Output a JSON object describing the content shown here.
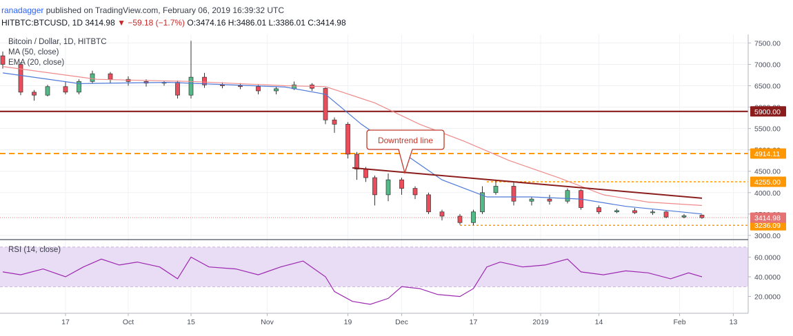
{
  "header": {
    "author": "ranadagger",
    "published_text": "published on TradingView.com, February 06, 2019 16:39:32 UTC",
    "symbol": "HITBTC:BTCUSD, 1D",
    "last": "3414.98",
    "change": "▼ −59.18 (−1.7%)",
    "open": "O:3474.16",
    "high": "H:3486.01",
    "low": "L:3386.01",
    "close": "C:3414.98"
  },
  "legend": {
    "title": "Bitcoin / Dollar, 1D, HITBTC",
    "ma": "MA (50, close)",
    "ema": "EMA (20, close)",
    "rsi": "RSI (14, close)"
  },
  "annotation": {
    "text": "Downtrend line"
  },
  "colors": {
    "up": "#53b987",
    "down": "#eb4d5c",
    "ma50": "#ef8a8a",
    "ema20": "#4e79d8",
    "level": "#8b1d1d",
    "dashed": "#ff9800",
    "rsi_line": "#9c27b0",
    "rsi_band": "#e9dcf5",
    "current_tag": "#e57373"
  },
  "chart_data": [
    {
      "type": "candlestick",
      "title": "Bitcoin / Dollar, 1D, HITBTC",
      "y_ticks": [
        "7500.00",
        "7000.00",
        "6500.00",
        "6000.00",
        "5500.00",
        "5000.00",
        "4500.00",
        "4000.00",
        "3500.00",
        "3000.00"
      ],
      "x_ticks": [
        "17",
        "Oct",
        "15",
        "Nov",
        "19",
        "Dec",
        "17",
        "2019",
        "14",
        "Feb",
        "13"
      ],
      "ylim": [
        2950,
        7700
      ],
      "x_range": [
        "2018-09-03",
        "2019-02-14"
      ],
      "levels": [
        {
          "label": "5900.00",
          "value": 5900,
          "style": "solid"
        },
        {
          "label": "4914.11",
          "value": 4914.11,
          "style": "dashed"
        },
        {
          "label": "4255.00",
          "value": 4255,
          "style": "dashed"
        },
        {
          "label": "3236.09",
          "value": 3236.09,
          "style": "dashed"
        }
      ],
      "current_price": {
        "label": "3414.98",
        "value": 3414.98
      },
      "downtrend_line": {
        "from": [
          "2018-11-20",
          4580
        ],
        "to": [
          "2019-02-06",
          3870
        ]
      },
      "ohlc": [
        [
          "2018-09-03",
          7200,
          7300,
          6900,
          7000
        ],
        [
          "2018-09-07",
          7000,
          7050,
          6280,
          6350
        ],
        [
          "2018-09-10",
          6350,
          6400,
          6150,
          6280
        ],
        [
          "2018-09-13",
          6280,
          6520,
          6250,
          6480
        ],
        [
          "2018-09-17",
          6480,
          6600,
          6300,
          6350
        ],
        [
          "2018-09-20",
          6350,
          6650,
          6300,
          6600
        ],
        [
          "2018-09-23",
          6600,
          6850,
          6550,
          6780
        ],
        [
          "2018-09-27",
          6780,
          6820,
          6550,
          6650
        ],
        [
          "2018-10-01",
          6650,
          6720,
          6500,
          6600
        ],
        [
          "2018-10-05",
          6600,
          6650,
          6480,
          6560
        ],
        [
          "2018-10-09",
          6560,
          6620,
          6500,
          6580
        ],
        [
          "2018-10-12",
          6580,
          6620,
          6200,
          6280
        ],
        [
          "2018-10-15",
          6280,
          7550,
          6200,
          6700
        ],
        [
          "2018-10-18",
          6700,
          6800,
          6450,
          6520
        ],
        [
          "2018-10-22",
          6520,
          6580,
          6440,
          6500
        ],
        [
          "2018-10-26",
          6500,
          6560,
          6420,
          6480
        ],
        [
          "2018-10-30",
          6480,
          6520,
          6300,
          6380
        ],
        [
          "2018-11-03",
          6380,
          6480,
          6300,
          6430
        ],
        [
          "2018-11-07",
          6430,
          6600,
          6400,
          6520
        ],
        [
          "2018-11-11",
          6520,
          6560,
          6380,
          6440
        ],
        [
          "2018-11-14",
          6440,
          6460,
          5600,
          5700
        ],
        [
          "2018-11-16",
          5700,
          5760,
          5400,
          5600
        ],
        [
          "2018-11-19",
          5600,
          5650,
          4800,
          4900
        ],
        [
          "2018-11-21",
          4900,
          4950,
          4300,
          4550
        ],
        [
          "2018-11-23",
          4550,
          4600,
          4250,
          4350
        ],
        [
          "2018-11-25",
          4350,
          4400,
          3700,
          3950
        ],
        [
          "2018-11-28",
          3950,
          4450,
          3800,
          4300
        ],
        [
          "2018-12-01",
          4300,
          4350,
          3950,
          4100
        ],
        [
          "2018-12-04",
          4100,
          4150,
          3850,
          3950
        ],
        [
          "2018-12-07",
          3950,
          4000,
          3500,
          3550
        ],
        [
          "2018-12-10",
          3550,
          3600,
          3350,
          3450
        ],
        [
          "2018-12-14",
          3450,
          3500,
          3250,
          3300
        ],
        [
          "2018-12-17",
          3300,
          3600,
          3240,
          3550
        ],
        [
          "2018-12-19",
          3550,
          4150,
          3500,
          4000
        ],
        [
          "2018-12-22",
          4000,
          4300,
          3950,
          4150
        ],
        [
          "2018-12-26",
          4150,
          4250,
          3700,
          3800
        ],
        [
          "2018-12-30",
          3800,
          3900,
          3700,
          3850
        ],
        [
          "2019-01-03",
          3850,
          3950,
          3720,
          3800
        ],
        [
          "2019-01-07",
          3800,
          4100,
          3750,
          4050
        ],
        [
          "2019-01-10",
          4050,
          4080,
          3600,
          3650
        ],
        [
          "2019-01-14",
          3650,
          3700,
          3500,
          3550
        ],
        [
          "2019-01-18",
          3550,
          3620,
          3520,
          3580
        ],
        [
          "2019-01-22",
          3580,
          3640,
          3500,
          3530
        ],
        [
          "2019-01-26",
          3530,
          3600,
          3480,
          3550
        ],
        [
          "2019-01-29",
          3550,
          3570,
          3400,
          3430
        ],
        [
          "2019-02-02",
          3430,
          3500,
          3400,
          3460
        ],
        [
          "2019-02-06",
          3474.16,
          3486.01,
          3386.01,
          3414.98
        ]
      ],
      "ma50": [
        [
          "2018-09-03",
          6950
        ],
        [
          "2018-09-24",
          6650
        ],
        [
          "2018-10-15",
          6600
        ],
        [
          "2018-11-05",
          6500
        ],
        [
          "2018-11-14",
          6480
        ],
        [
          "2018-11-25",
          6100
        ],
        [
          "2018-12-05",
          5600
        ],
        [
          "2018-12-15",
          5200
        ],
        [
          "2018-12-25",
          4750
        ],
        [
          "2019-01-05",
          4350
        ],
        [
          "2019-01-15",
          3950
        ],
        [
          "2019-01-25",
          3780
        ],
        [
          "2019-02-06",
          3700
        ]
      ],
      "ema20": [
        [
          "2018-09-03",
          6800
        ],
        [
          "2018-09-20",
          6550
        ],
        [
          "2018-10-10",
          6580
        ],
        [
          "2018-11-05",
          6470
        ],
        [
          "2018-11-14",
          6300
        ],
        [
          "2018-11-22",
          5600
        ],
        [
          "2018-12-01",
          4950
        ],
        [
          "2018-12-10",
          4300
        ],
        [
          "2018-12-20",
          3900
        ],
        [
          "2018-12-30",
          3900
        ],
        [
          "2019-01-10",
          3850
        ],
        [
          "2019-01-20",
          3680
        ],
        [
          "2019-02-06",
          3500
        ]
      ]
    },
    {
      "type": "line",
      "title": "RSI (14, close)",
      "y_ticks": [
        "60.0000",
        "40.0000",
        "20.0000"
      ],
      "ylim": [
        5,
        75
      ],
      "bands": [
        70,
        30
      ],
      "x_range": [
        "2018-09-03",
        "2019-02-14"
      ],
      "points": [
        [
          "2018-09-03",
          45
        ],
        [
          "2018-09-07",
          42
        ],
        [
          "2018-09-12",
          48
        ],
        [
          "2018-09-17",
          40
        ],
        [
          "2018-09-21",
          50
        ],
        [
          "2018-09-25",
          58
        ],
        [
          "2018-09-29",
          52
        ],
        [
          "2018-10-03",
          55
        ],
        [
          "2018-10-08",
          50
        ],
        [
          "2018-10-12",
          38
        ],
        [
          "2018-10-15",
          60
        ],
        [
          "2018-10-19",
          50
        ],
        [
          "2018-10-25",
          48
        ],
        [
          "2018-10-30",
          42
        ],
        [
          "2018-11-04",
          50
        ],
        [
          "2018-11-09",
          56
        ],
        [
          "2018-11-14",
          40
        ],
        [
          "2018-11-16",
          25
        ],
        [
          "2018-11-20",
          15
        ],
        [
          "2018-11-24",
          12
        ],
        [
          "2018-11-28",
          18
        ],
        [
          "2018-12-01",
          30
        ],
        [
          "2018-12-05",
          28
        ],
        [
          "2018-12-09",
          22
        ],
        [
          "2018-12-14",
          20
        ],
        [
          "2018-12-17",
          28
        ],
        [
          "2018-12-20",
          50
        ],
        [
          "2018-12-23",
          55
        ],
        [
          "2018-12-28",
          50
        ],
        [
          "2019-01-02",
          52
        ],
        [
          "2019-01-07",
          58
        ],
        [
          "2019-01-10",
          45
        ],
        [
          "2019-01-15",
          42
        ],
        [
          "2019-01-20",
          46
        ],
        [
          "2019-01-25",
          44
        ],
        [
          "2019-01-30",
          38
        ],
        [
          "2019-02-03",
          44
        ],
        [
          "2019-02-06",
          40
        ]
      ]
    }
  ]
}
